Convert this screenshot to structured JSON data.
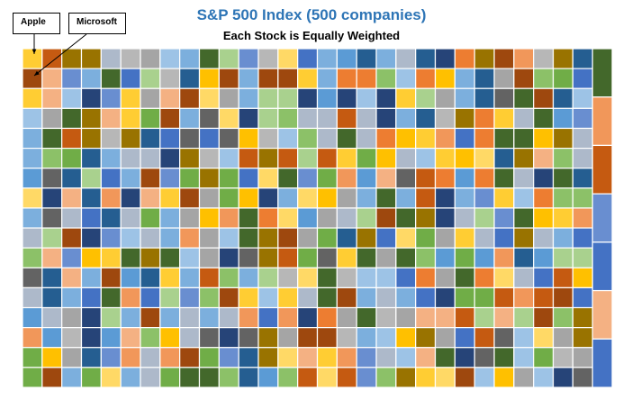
{
  "chart_data": {
    "type": "treemap",
    "title": "S&P 500 Index (500 companies)",
    "subtitle": "Each Stock is Equally Weighted",
    "total_items": 500,
    "weighting": "equal",
    "annotations": [
      {
        "label": "Apple"
      },
      {
        "label": "Microsoft"
      }
    ],
    "palette": [
      "#4472C4",
      "#ED7D31",
      "#A5A5A5",
      "#FFC000",
      "#5B9BD5",
      "#70AD47",
      "#264478",
      "#9E480E",
      "#636363",
      "#997300",
      "#255E91",
      "#43682B",
      "#698ED0",
      "#F1975A",
      "#B7B7B7",
      "#FFCD33",
      "#7CAFDD",
      "#8CC168",
      "#C55A11",
      "#ADB9CA",
      "#F4B183",
      "#FFD966",
      "#A9D18E",
      "#9DC3E6"
    ],
    "title_color": "#2E75B6"
  }
}
